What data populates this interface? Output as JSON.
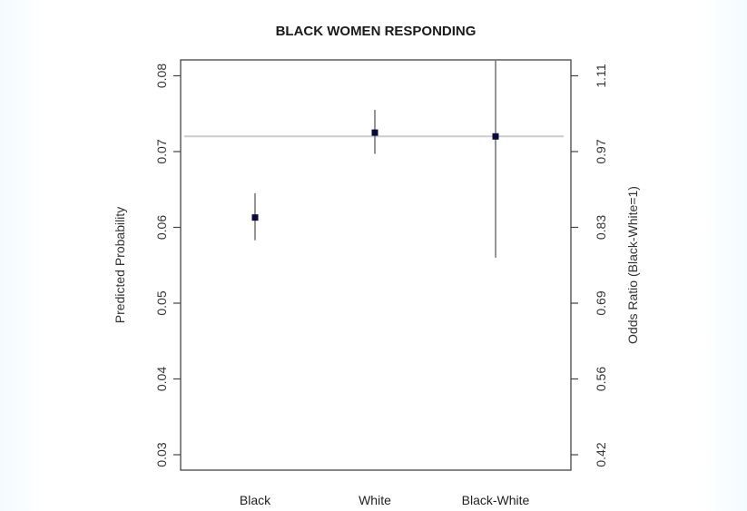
{
  "chart_data": {
    "type": "scatter",
    "title": "BLACK WOMEN RESPONDING",
    "xlabel": "",
    "ylabel": "Predicted Probability",
    "ylabel_right": "Odds Ratio (Black-White=1)",
    "ylim": [
      0.03,
      0.082
    ],
    "yticks": [
      0.03,
      0.04,
      0.05,
      0.06,
      0.07,
      0.08
    ],
    "ytick_labels": [
      "0.03",
      "0.04",
      "0.05",
      "0.06",
      "0.07",
      "0.08"
    ],
    "yticks_right": [
      0.03,
      0.04,
      0.05,
      0.06,
      0.07,
      0.08
    ],
    "ytick_labels_right": [
      "0.42",
      "0.56",
      "0.69",
      "0.83",
      "0.97",
      "1.11"
    ],
    "categories": [
      "Black",
      "White",
      "Black-White"
    ],
    "values": [
      0.0613,
      0.0725,
      0.072
    ],
    "ci_low": [
      0.0583,
      0.0697,
      0.056
    ],
    "ci_high": [
      0.0645,
      0.0755,
      0.082
    ],
    "reference_line": 0.072,
    "grid": false,
    "colors": {
      "point": "#0a0a3a",
      "errorbar": "#7a7a7a",
      "reference": "#cccccc",
      "axis": "#444444"
    }
  }
}
